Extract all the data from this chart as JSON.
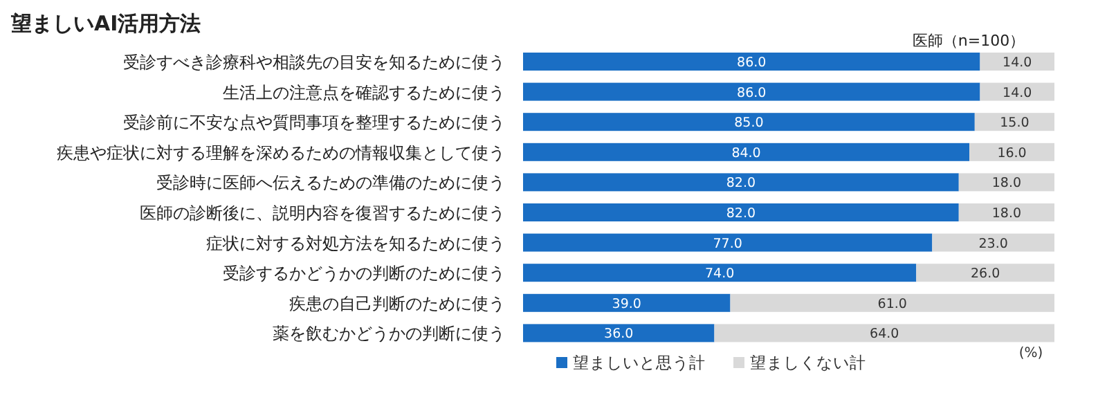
{
  "chart_data": {
    "type": "bar",
    "orientation": "horizontal",
    "stacked": true,
    "legend": "bottom",
    "title": "望ましいAI活用方法",
    "subtitle": "医師（n=100）",
    "annotations": [
      "(%)"
    ],
    "categories": [
      "受診すべき診療科や相談先の目安を知るために使う",
      "生活上の注意点を確認するために使う",
      "受診前に不安な点や質問事項を整理するために使う",
      "疾患や症状に対する理解を深めるための情報収集として使う",
      "受診時に医師へ伝えるための準備のために使う",
      "医師の診断後に、説明内容を復習するために使う",
      "症状に対する対処方法を知るために使う",
      "受診するかどうかの判断のために使う",
      "疾患の自己判断のために使う",
      "薬を飲むかどうかの判断に使う"
    ],
    "series": [
      {
        "name": "望ましいと思う計",
        "color": "#1a6ec4",
        "values": [
          86.0,
          86.0,
          85.0,
          84.0,
          82.0,
          82.0,
          77.0,
          74.0,
          39.0,
          36.0
        ],
        "value_labels": [
          "86.0",
          "86.0",
          "85.0",
          "84.0",
          "82.0",
          "82.0",
          "77.0",
          "74.0",
          "39.0",
          "36.0"
        ]
      },
      {
        "name": "望ましくない計",
        "color": "#d9d9d9",
        "values": [
          14.0,
          14.0,
          15.0,
          16.0,
          18.0,
          18.0,
          23.0,
          26.0,
          61.0,
          64.0
        ],
        "value_labels": [
          "14.0",
          "14.0",
          "15.0",
          "16.0",
          "18.0",
          "18.0",
          "23.0",
          "26.0",
          "61.0",
          "64.0"
        ]
      }
    ]
  }
}
